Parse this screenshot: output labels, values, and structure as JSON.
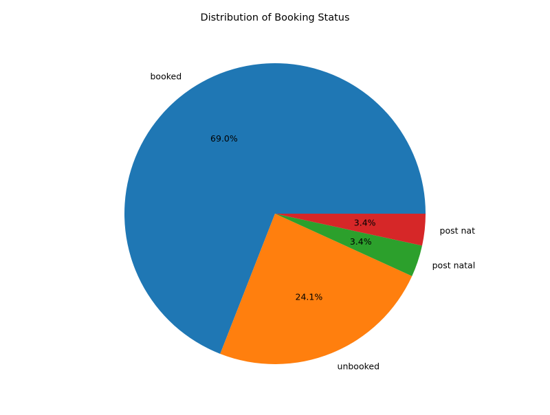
{
  "chart_data": {
    "type": "pie",
    "title": "Distribution of Booking Status",
    "categories": [
      "booked",
      "unbooked",
      "post natal",
      "post nat"
    ],
    "values": [
      69.0,
      24.1,
      3.4,
      3.4
    ],
    "value_labels": [
      "69.0%",
      "24.1%",
      "3.4%",
      "3.4%"
    ],
    "colors": [
      "#1f77b4",
      "#ff7f0e",
      "#2ca02c",
      "#d62728"
    ],
    "start_angle_deg": 0,
    "direction": "counterclockwise",
    "legend": "none"
  }
}
